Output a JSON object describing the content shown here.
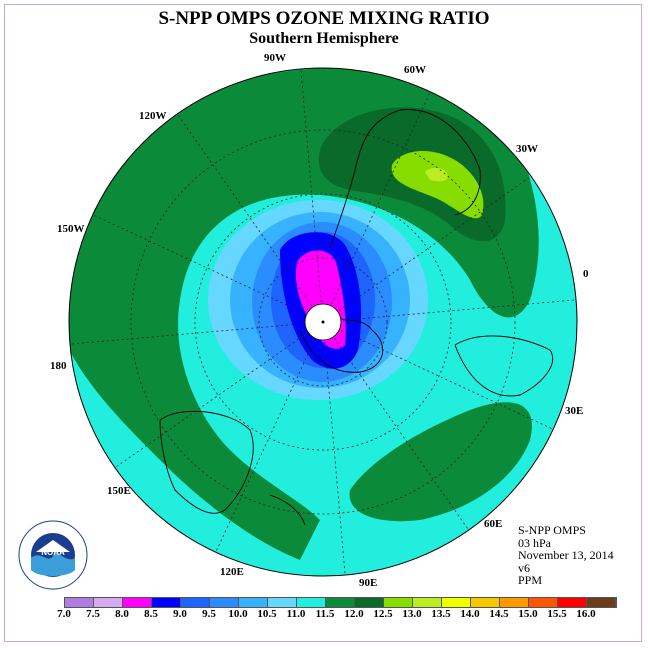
{
  "title": "S-NPP OMPS OZONE MIXING RATIO",
  "subtitle": "Southern Hemisphere",
  "longitude_labels": [
    "90W",
    "60W",
    "30W",
    "0",
    "30E",
    "60E",
    "90E",
    "120E",
    "150E",
    "180",
    "150W",
    "120W"
  ],
  "info": {
    "instrument": "S-NPP OMPS",
    "level": "03 hPa",
    "date": "November 13, 2014",
    "version": "v6",
    "units": "PPM"
  },
  "logo_text": "NOAA",
  "colorbar": {
    "colors": [
      "#b07ce0",
      "#d6aaf0",
      "#ff00ff",
      "#0000ff",
      "#1e64ff",
      "#2a8cff",
      "#36b2ff",
      "#66d8ff",
      "#22eedd",
      "#0b8a3a",
      "#0a6a2a",
      "#88dd00",
      "#bbee22",
      "#eeff00",
      "#f5c800",
      "#ff9900",
      "#ff5500",
      "#ff0000",
      "#6e3b1c"
    ],
    "labels": [
      "7.0",
      "7.5",
      "8.0",
      "8.5",
      "9.0",
      "9.5",
      "10.0",
      "10.5",
      "11.0",
      "11.5",
      "12.0",
      "12.5",
      "13.0",
      "13.5",
      "14.0",
      "14.5",
      "15.0",
      "15.5",
      "16.0"
    ]
  },
  "map_colors": {
    "background": "#22eedd",
    "green_band": "#0b8a3a",
    "dark_green": "#0a6a2a",
    "yellow_green": "#88dd00",
    "light_yellow": "#bbee22",
    "light_blue": "#66d8ff",
    "mid_blue": "#36b2ff",
    "blue2": "#2a8cff",
    "blue": "#1e64ff",
    "deep_blue": "#0000ff",
    "magenta": "#ff00ff"
  }
}
